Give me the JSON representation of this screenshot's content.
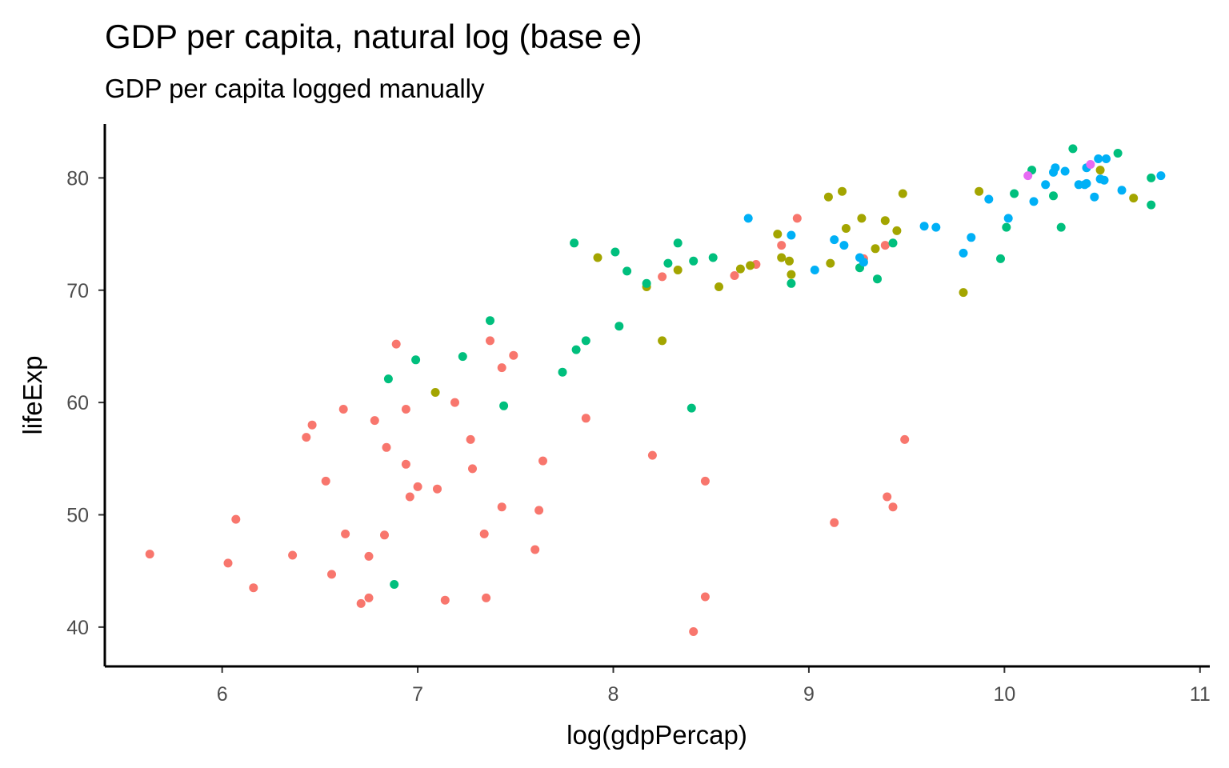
{
  "chart_data": {
    "type": "scatter",
    "title": "GDP per capita, natural log (base e)",
    "subtitle": "GDP per capita logged manually",
    "xlabel": "log(gdpPercap)",
    "ylabel": "lifeExp",
    "xlim": [
      5.4,
      11.05
    ],
    "ylim": [
      36.5,
      84.8
    ],
    "x_ticks": [
      6,
      7,
      8,
      9,
      10,
      11
    ],
    "y_ticks": [
      40,
      50,
      60,
      70,
      80
    ],
    "grid": false,
    "legend": "none",
    "colors": {
      "Africa": "#F8766D",
      "Americas": "#A3A500",
      "Asia": "#00BF7D",
      "Europe": "#00B0F6",
      "Oceania": "#E76BF3"
    },
    "series": [
      {
        "color_key": "Africa",
        "points": [
          [
            5.63,
            46.5
          ],
          [
            6.03,
            45.7
          ],
          [
            6.07,
            49.6
          ],
          [
            6.16,
            43.5
          ],
          [
            6.36,
            46.4
          ],
          [
            6.43,
            56.9
          ],
          [
            6.46,
            58.0
          ],
          [
            6.53,
            53.0
          ],
          [
            6.56,
            44.7
          ],
          [
            6.62,
            59.4
          ],
          [
            6.63,
            48.3
          ],
          [
            6.71,
            42.1
          ],
          [
            6.75,
            42.6
          ],
          [
            6.75,
            46.3
          ],
          [
            6.78,
            58.4
          ],
          [
            6.83,
            48.2
          ],
          [
            6.84,
            56.0
          ],
          [
            6.89,
            65.2
          ],
          [
            6.94,
            54.5
          ],
          [
            6.94,
            59.4
          ],
          [
            6.96,
            51.6
          ],
          [
            7.0,
            52.5
          ],
          [
            7.1,
            52.3
          ],
          [
            7.14,
            42.4
          ],
          [
            7.19,
            60.0
          ],
          [
            7.27,
            56.7
          ],
          [
            7.28,
            54.1
          ],
          [
            7.34,
            48.3
          ],
          [
            7.35,
            42.6
          ],
          [
            7.37,
            65.5
          ],
          [
            7.43,
            50.7
          ],
          [
            7.43,
            63.1
          ],
          [
            7.49,
            64.2
          ],
          [
            7.6,
            46.9
          ],
          [
            7.62,
            50.4
          ],
          [
            7.64,
            54.8
          ],
          [
            7.86,
            58.6
          ],
          [
            8.2,
            55.3
          ],
          [
            8.25,
            71.2
          ],
          [
            8.41,
            39.6
          ],
          [
            8.47,
            53.0
          ],
          [
            8.47,
            42.7
          ],
          [
            8.62,
            71.3
          ],
          [
            8.73,
            72.3
          ],
          [
            8.86,
            74.0
          ],
          [
            8.94,
            76.4
          ],
          [
            9.13,
            49.3
          ],
          [
            9.28,
            72.8
          ],
          [
            9.39,
            74.0
          ],
          [
            9.4,
            51.6
          ],
          [
            9.43,
            50.7
          ],
          [
            9.49,
            56.7
          ]
        ]
      },
      {
        "color_key": "Americas",
        "points": [
          [
            7.09,
            60.9
          ],
          [
            7.92,
            72.9
          ],
          [
            8.17,
            70.3
          ],
          [
            8.25,
            65.5
          ],
          [
            8.33,
            71.8
          ],
          [
            8.54,
            70.3
          ],
          [
            8.65,
            71.9
          ],
          [
            8.7,
            72.2
          ],
          [
            8.84,
            75.0
          ],
          [
            8.86,
            72.9
          ],
          [
            8.9,
            72.6
          ],
          [
            8.91,
            71.4
          ],
          [
            9.1,
            78.3
          ],
          [
            9.11,
            72.4
          ],
          [
            9.17,
            78.8
          ],
          [
            9.19,
            75.5
          ],
          [
            9.27,
            76.4
          ],
          [
            9.34,
            73.7
          ],
          [
            9.39,
            76.2
          ],
          [
            9.45,
            75.3
          ],
          [
            9.48,
            78.6
          ],
          [
            9.79,
            69.8
          ],
          [
            9.87,
            78.8
          ],
          [
            10.49,
            80.7
          ],
          [
            10.66,
            78.2
          ]
        ]
      },
      {
        "color_key": "Asia",
        "points": [
          [
            6.85,
            62.1
          ],
          [
            6.88,
            43.8
          ],
          [
            6.99,
            63.8
          ],
          [
            7.23,
            64.1
          ],
          [
            7.37,
            67.3
          ],
          [
            7.44,
            59.7
          ],
          [
            7.74,
            62.7
          ],
          [
            7.81,
            64.7
          ],
          [
            7.8,
            74.2
          ],
          [
            7.86,
            65.5
          ],
          [
            8.01,
            73.4
          ],
          [
            8.03,
            66.8
          ],
          [
            8.07,
            71.7
          ],
          [
            8.17,
            70.6
          ],
          [
            8.28,
            72.4
          ],
          [
            8.33,
            74.2
          ],
          [
            8.4,
            59.5
          ],
          [
            8.41,
            72.6
          ],
          [
            8.51,
            72.9
          ],
          [
            8.91,
            70.6
          ],
          [
            9.26,
            72.0
          ],
          [
            9.35,
            71.0
          ],
          [
            9.43,
            74.2
          ],
          [
            9.98,
            72.8
          ],
          [
            10.01,
            75.6
          ],
          [
            10.05,
            78.6
          ],
          [
            10.14,
            80.7
          ],
          [
            10.25,
            78.4
          ],
          [
            10.29,
            75.6
          ],
          [
            10.35,
            82.6
          ],
          [
            10.58,
            82.2
          ],
          [
            10.75,
            77.6
          ],
          [
            10.75,
            80.0
          ]
        ]
      },
      {
        "color_key": "Europe",
        "points": [
          [
            8.69,
            76.4
          ],
          [
            8.91,
            74.9
          ],
          [
            9.03,
            71.8
          ],
          [
            9.13,
            74.5
          ],
          [
            9.18,
            74.0
          ],
          [
            9.26,
            72.9
          ],
          [
            9.28,
            72.5
          ],
          [
            9.59,
            75.7
          ],
          [
            9.65,
            75.6
          ],
          [
            9.79,
            73.3
          ],
          [
            9.83,
            74.7
          ],
          [
            9.92,
            78.1
          ],
          [
            10.02,
            76.4
          ],
          [
            10.15,
            77.9
          ],
          [
            10.21,
            79.4
          ],
          [
            10.25,
            80.5
          ],
          [
            10.26,
            80.9
          ],
          [
            10.31,
            80.6
          ],
          [
            10.38,
            79.4
          ],
          [
            10.41,
            79.4
          ],
          [
            10.42,
            80.9
          ],
          [
            10.42,
            79.5
          ],
          [
            10.46,
            78.3
          ],
          [
            10.48,
            81.7
          ],
          [
            10.49,
            79.9
          ],
          [
            10.51,
            79.8
          ],
          [
            10.52,
            81.7
          ],
          [
            10.6,
            78.9
          ],
          [
            10.8,
            80.2
          ]
        ]
      },
      {
        "color_key": "Oceania",
        "points": [
          [
            10.12,
            80.2
          ],
          [
            10.44,
            81.2
          ]
        ]
      }
    ]
  }
}
